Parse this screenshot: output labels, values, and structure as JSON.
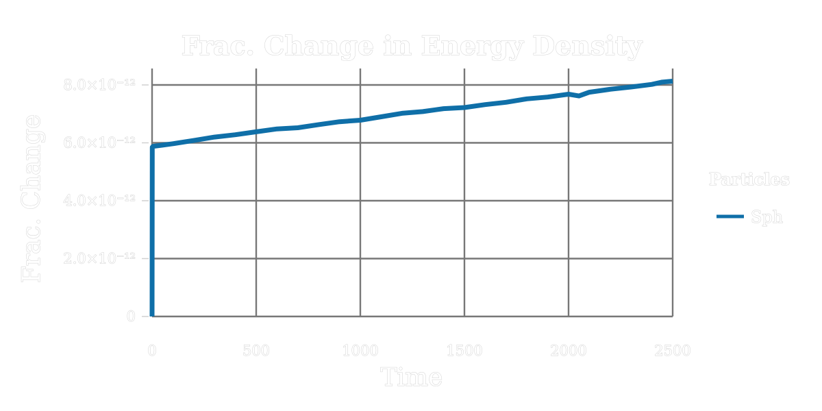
{
  "chart_data": {
    "type": "line",
    "title": "Frac. Change in Energy Density",
    "xlabel": "Time",
    "ylabel": "Frac. Change",
    "xlim": [
      0,
      2500
    ],
    "ylim": [
      0,
      8e-12
    ],
    "x_ticks": [
      {
        "value": 0,
        "label": "0"
      },
      {
        "value": 500,
        "label": "500"
      },
      {
        "value": 1000,
        "label": "1000"
      },
      {
        "value": 1500,
        "label": "1500"
      },
      {
        "value": 2000,
        "label": "2000"
      },
      {
        "value": 2500,
        "label": "2500"
      }
    ],
    "y_ticks": [
      {
        "value": 0,
        "label": "0"
      },
      {
        "value": 2e-12,
        "label": "2.0×10⁻¹²"
      },
      {
        "value": 4e-12,
        "label": "4.0×10⁻¹²"
      },
      {
        "value": 6e-12,
        "label": "6.0×10⁻¹²"
      },
      {
        "value": 8e-12,
        "label": "8.0×10⁻¹²"
      }
    ],
    "grid": true,
    "legend": {
      "title": "Particles",
      "placement": "right"
    },
    "series": [
      {
        "name": "Sph",
        "color": "#0f6fa8",
        "x": [
          0,
          1,
          5,
          50,
          100,
          200,
          300,
          400,
          500,
          600,
          700,
          800,
          900,
          1000,
          1100,
          1200,
          1300,
          1400,
          1500,
          1600,
          1700,
          1800,
          1900,
          2000,
          2050,
          2100,
          2200,
          2300,
          2400,
          2450,
          2500
        ],
        "y": [
          0,
          5.85e-12,
          5.88e-12,
          5.92e-12,
          5.97e-12,
          6.08e-12,
          6.2e-12,
          6.28e-12,
          6.38e-12,
          6.48e-12,
          6.52e-12,
          6.63e-12,
          6.73e-12,
          6.78e-12,
          6.9e-12,
          7.02e-12,
          7.08e-12,
          7.18e-12,
          7.22e-12,
          7.32e-12,
          7.4e-12,
          7.52e-12,
          7.58e-12,
          7.68e-12,
          7.62e-12,
          7.75e-12,
          7.85e-12,
          7.93e-12,
          8.02e-12,
          8.1e-12,
          8.13e-12
        ]
      }
    ]
  }
}
